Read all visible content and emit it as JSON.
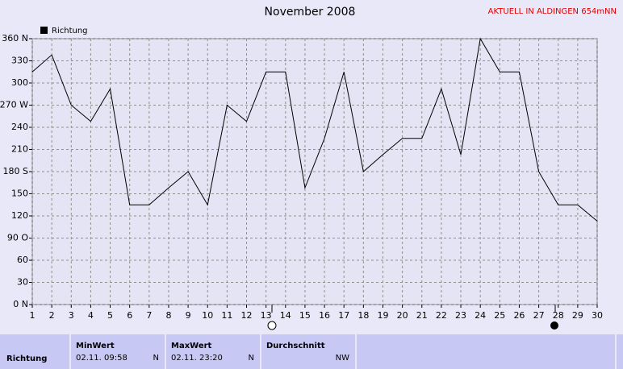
{
  "chart_data": {
    "type": "line",
    "title": "November 2008",
    "annotation": "AKTUELL IN ALDINGEN 654mNN",
    "x": [
      1,
      2,
      3,
      4,
      5,
      6,
      7,
      8,
      9,
      10,
      11,
      12,
      13,
      14,
      15,
      16,
      17,
      18,
      19,
      20,
      21,
      22,
      23,
      24,
      25,
      26,
      27,
      28,
      29,
      30
    ],
    "series": [
      {
        "name": "Richtung",
        "color": "#000000",
        "values": [
          315,
          338,
          270,
          248,
          292,
          135,
          135,
          158,
          180,
          135,
          270,
          248,
          315,
          315,
          158,
          225,
          315,
          180,
          203,
          225,
          225,
          292,
          203,
          360,
          315,
          315,
          180,
          135,
          135,
          113
        ]
      }
    ],
    "xlim": [
      1,
      30
    ],
    "xticks": [
      1,
      2,
      3,
      4,
      5,
      6,
      7,
      8,
      9,
      10,
      11,
      12,
      13,
      14,
      15,
      16,
      17,
      18,
      19,
      20,
      21,
      22,
      23,
      24,
      25,
      26,
      27,
      28,
      29,
      30
    ],
    "ylim": [
      0,
      360
    ],
    "yticks": [
      {
        "value": 0,
        "label": "0 N"
      },
      30,
      60,
      {
        "value": 90,
        "label": "90 O"
      },
      120,
      150,
      {
        "value": 180,
        "label": "180 S"
      },
      210,
      240,
      {
        "value": 270,
        "label": "270 W"
      },
      300,
      330,
      {
        "value": 360,
        "label": "360 N"
      }
    ],
    "grid": true
  },
  "summary": {
    "row_label": "Richtung",
    "columns": [
      {
        "header": "MinWert",
        "time": "02.11.  09:58",
        "value": "N"
      },
      {
        "header": "MaxWert",
        "time": "02.11.  23:20",
        "value": "N"
      },
      {
        "header": "Durchschnitt",
        "value": "NW"
      }
    ]
  }
}
